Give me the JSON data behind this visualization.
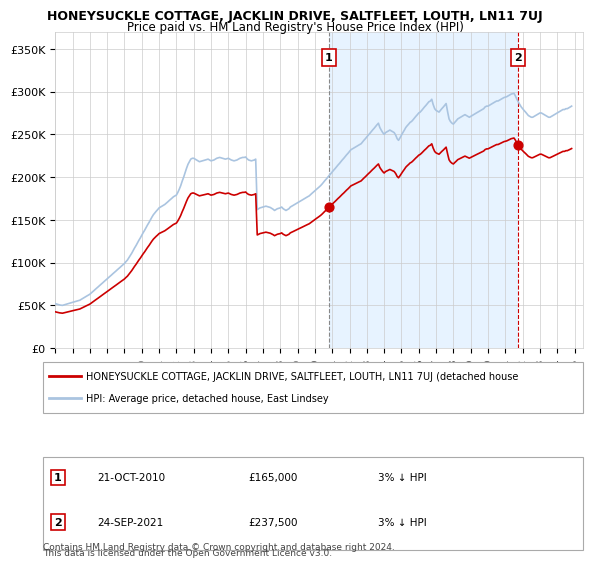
{
  "title": "HONEYSUCKLE COTTAGE, JACKLIN DRIVE, SALTFLEET, LOUTH, LN11 7UJ",
  "subtitle": "Price paid vs. HM Land Registry's House Price Index (HPI)",
  "ylabel": "",
  "background_color": "#ffffff",
  "plot_bg_color": "#ffffff",
  "grid_color": "#cccccc",
  "hpi_color": "#aac4e0",
  "price_color": "#cc0000",
  "sale1_date_num": 2010.81,
  "sale1_price": 165000,
  "sale2_date_num": 2021.73,
  "sale2_price": 237500,
  "shade_start": 2010.81,
  "shade_end": 2021.73,
  "legend_text1": "HONEYSUCKLE COTTAGE, JACKLIN DRIVE, SALTFLEET, LOUTH, LN11 7UJ (detached house",
  "legend_text2": "HPI: Average price, detached house, East Lindsey",
  "annot1_label": "1",
  "annot1_date": "21-OCT-2010",
  "annot1_price_str": "£165,000",
  "annot1_hpi": "3% ↓ HPI",
  "annot2_label": "2",
  "annot2_date": "24-SEP-2021",
  "annot2_price_str": "£237,500",
  "annot2_hpi": "3% ↓ HPI",
  "footer1": "Contains HM Land Registry data © Crown copyright and database right 2024.",
  "footer2": "This data is licensed under the Open Government Licence v3.0.",
  "ylim": [
    0,
    370000
  ],
  "xlim_start": 1995.0,
  "xlim_end": 2025.5,
  "yticks": [
    0,
    50000,
    100000,
    150000,
    200000,
    250000,
    300000,
    350000
  ],
  "ytick_labels": [
    "£0",
    "£50K",
    "£100K",
    "£150K",
    "£200K",
    "£250K",
    "£300K",
    "£350K"
  ],
  "xticks": [
    1995,
    1996,
    1997,
    1998,
    1999,
    2000,
    2001,
    2002,
    2003,
    2004,
    2005,
    2006,
    2007,
    2008,
    2009,
    2010,
    2011,
    2012,
    2013,
    2014,
    2015,
    2016,
    2017,
    2018,
    2019,
    2020,
    2021,
    2022,
    2023,
    2024,
    2025
  ],
  "hpi_times": [
    1995.0,
    1995.08,
    1995.17,
    1995.25,
    1995.33,
    1995.42,
    1995.5,
    1995.58,
    1995.67,
    1995.75,
    1995.83,
    1995.92,
    1996.0,
    1996.08,
    1996.17,
    1996.25,
    1996.33,
    1996.42,
    1996.5,
    1996.58,
    1996.67,
    1996.75,
    1996.83,
    1996.92,
    1997.0,
    1997.08,
    1997.17,
    1997.25,
    1997.33,
    1997.42,
    1997.5,
    1997.58,
    1997.67,
    1997.75,
    1997.83,
    1997.92,
    1998.0,
    1998.08,
    1998.17,
    1998.25,
    1998.33,
    1998.42,
    1998.5,
    1998.58,
    1998.67,
    1998.75,
    1998.83,
    1998.92,
    1999.0,
    1999.08,
    1999.17,
    1999.25,
    1999.33,
    1999.42,
    1999.5,
    1999.58,
    1999.67,
    1999.75,
    1999.83,
    1999.92,
    2000.0,
    2000.08,
    2000.17,
    2000.25,
    2000.33,
    2000.42,
    2000.5,
    2000.58,
    2000.67,
    2000.75,
    2000.83,
    2000.92,
    2001.0,
    2001.08,
    2001.17,
    2001.25,
    2001.33,
    2001.42,
    2001.5,
    2001.58,
    2001.67,
    2001.75,
    2001.83,
    2001.92,
    2002.0,
    2002.08,
    2002.17,
    2002.25,
    2002.33,
    2002.42,
    2002.5,
    2002.58,
    2002.67,
    2002.75,
    2002.83,
    2002.92,
    2003.0,
    2003.08,
    2003.17,
    2003.25,
    2003.33,
    2003.42,
    2003.5,
    2003.58,
    2003.67,
    2003.75,
    2003.83,
    2003.92,
    2004.0,
    2004.08,
    2004.17,
    2004.25,
    2004.33,
    2004.42,
    2004.5,
    2004.58,
    2004.67,
    2004.75,
    2004.83,
    2004.92,
    2005.0,
    2005.08,
    2005.17,
    2005.25,
    2005.33,
    2005.42,
    2005.5,
    2005.58,
    2005.67,
    2005.75,
    2005.83,
    2005.92,
    2006.0,
    2006.08,
    2006.17,
    2006.25,
    2006.33,
    2006.42,
    2006.5,
    2006.58,
    2006.67,
    2006.75,
    2006.83,
    2006.92,
    2007.0,
    2007.08,
    2007.17,
    2007.25,
    2007.33,
    2007.42,
    2007.5,
    2007.58,
    2007.67,
    2007.75,
    2007.83,
    2007.92,
    2008.0,
    2008.08,
    2008.17,
    2008.25,
    2008.33,
    2008.42,
    2008.5,
    2008.58,
    2008.67,
    2008.75,
    2008.83,
    2008.92,
    2009.0,
    2009.08,
    2009.17,
    2009.25,
    2009.33,
    2009.42,
    2009.5,
    2009.58,
    2009.67,
    2009.75,
    2009.83,
    2009.92,
    2010.0,
    2010.08,
    2010.17,
    2010.25,
    2010.33,
    2010.42,
    2010.5,
    2010.58,
    2010.67,
    2010.75,
    2010.83,
    2010.92,
    2011.0,
    2011.08,
    2011.17,
    2011.25,
    2011.33,
    2011.42,
    2011.5,
    2011.58,
    2011.67,
    2011.75,
    2011.83,
    2011.92,
    2012.0,
    2012.08,
    2012.17,
    2012.25,
    2012.33,
    2012.42,
    2012.5,
    2012.58,
    2012.67,
    2012.75,
    2012.83,
    2012.92,
    2013.0,
    2013.08,
    2013.17,
    2013.25,
    2013.33,
    2013.42,
    2013.5,
    2013.58,
    2013.67,
    2013.75,
    2013.83,
    2013.92,
    2014.0,
    2014.08,
    2014.17,
    2014.25,
    2014.33,
    2014.42,
    2014.5,
    2014.58,
    2014.67,
    2014.75,
    2014.83,
    2014.92,
    2015.0,
    2015.08,
    2015.17,
    2015.25,
    2015.33,
    2015.42,
    2015.5,
    2015.58,
    2015.67,
    2015.75,
    2015.83,
    2015.92,
    2016.0,
    2016.08,
    2016.17,
    2016.25,
    2016.33,
    2016.42,
    2016.5,
    2016.58,
    2016.67,
    2016.75,
    2016.83,
    2016.92,
    2017.0,
    2017.08,
    2017.17,
    2017.25,
    2017.33,
    2017.42,
    2017.5,
    2017.58,
    2017.67,
    2017.75,
    2017.83,
    2017.92,
    2018.0,
    2018.08,
    2018.17,
    2018.25,
    2018.33,
    2018.42,
    2018.5,
    2018.58,
    2018.67,
    2018.75,
    2018.83,
    2018.92,
    2019.0,
    2019.08,
    2019.17,
    2019.25,
    2019.33,
    2019.42,
    2019.5,
    2019.58,
    2019.67,
    2019.75,
    2019.83,
    2019.92,
    2020.0,
    2020.08,
    2020.17,
    2020.25,
    2020.33,
    2020.42,
    2020.5,
    2020.58,
    2020.67,
    2020.75,
    2020.83,
    2020.92,
    2021.0,
    2021.08,
    2021.17,
    2021.25,
    2021.33,
    2021.42,
    2021.5,
    2021.58,
    2021.67,
    2021.75,
    2021.83,
    2021.92,
    2022.0,
    2022.08,
    2022.17,
    2022.25,
    2022.33,
    2022.42,
    2022.5,
    2022.58,
    2022.67,
    2022.75,
    2022.83,
    2022.92,
    2023.0,
    2023.08,
    2023.17,
    2023.25,
    2023.33,
    2023.42,
    2023.5,
    2023.58,
    2023.67,
    2023.75,
    2023.83,
    2023.92,
    2024.0,
    2024.08,
    2024.17,
    2024.25,
    2024.33,
    2024.42,
    2024.5,
    2024.58,
    2024.67,
    2024.75,
    2024.83,
    2024.92,
    2025.0,
    2025.08,
    2025.17
  ],
  "hpi_values": [
    52000,
    51500,
    51000,
    50500,
    50200,
    50000,
    50500,
    51000,
    51500,
    52000,
    52500,
    53000,
    53500,
    54000,
    54500,
    55000,
    55500,
    56000,
    57000,
    58000,
    59000,
    60000,
    61000,
    62000,
    63000,
    64500,
    66000,
    67500,
    69000,
    70500,
    72000,
    73500,
    75000,
    76500,
    78000,
    79500,
    81000,
    82500,
    84000,
    85500,
    87000,
    88500,
    90000,
    91500,
    93000,
    94500,
    96000,
    97500,
    99000,
    101000,
    103000,
    105500,
    108000,
    111000,
    114000,
    117000,
    120000,
    123000,
    126000,
    129000,
    132000,
    135000,
    138000,
    141000,
    144000,
    147000,
    150000,
    153000,
    156000,
    158000,
    160000,
    162000,
    164000,
    165000,
    166000,
    167000,
    168000,
    169500,
    171000,
    172500,
    174000,
    175500,
    177000,
    178000,
    179000,
    182000,
    186000,
    190000,
    195000,
    200000,
    205000,
    210000,
    215000,
    218000,
    221000,
    222000,
    222000,
    221000,
    220000,
    219000,
    218000,
    218500,
    219000,
    219500,
    220000,
    220500,
    221000,
    220000,
    219000,
    219500,
    220000,
    221000,
    222000,
    222500,
    223000,
    222500,
    222000,
    221500,
    221000,
    221500,
    222000,
    221000,
    220000,
    219500,
    219000,
    219500,
    220000,
    221000,
    222000,
    222500,
    223000,
    223000,
    223500,
    221500,
    220000,
    219500,
    219000,
    219500,
    220000,
    221000,
    162000,
    163000,
    164000,
    164500,
    165000,
    165500,
    166000,
    165500,
    165000,
    164500,
    163500,
    162500,
    161000,
    162000,
    163000,
    163500,
    164000,
    165000,
    163000,
    162000,
    161000,
    162000,
    163000,
    165000,
    166000,
    167000,
    168000,
    169000,
    170000,
    171000,
    172000,
    173000,
    174000,
    175000,
    176000,
    177000,
    178000,
    179500,
    181000,
    182500,
    184000,
    185500,
    187000,
    188500,
    190000,
    192000,
    194000,
    196000,
    198000,
    200000,
    202000,
    204000,
    206000,
    208000,
    210000,
    212000,
    214000,
    216000,
    218000,
    220000,
    222000,
    224000,
    226000,
    228000,
    230000,
    232000,
    233000,
    234000,
    235000,
    236000,
    237000,
    238000,
    239000,
    241000,
    243000,
    245000,
    247000,
    249000,
    251000,
    253000,
    255000,
    257000,
    259000,
    261000,
    263000,
    258000,
    255000,
    252000,
    250000,
    252000,
    253000,
    254000,
    255000,
    254000,
    253000,
    252000,
    249000,
    245000,
    243000,
    246000,
    249000,
    252000,
    255000,
    258000,
    260000,
    262000,
    264000,
    265000,
    267000,
    269000,
    271000,
    273000,
    275000,
    276000,
    278000,
    280000,
    282000,
    284000,
    286000,
    288000,
    289000,
    291000,
    285000,
    280000,
    278000,
    277000,
    276000,
    278000,
    280000,
    282000,
    284000,
    286000,
    276000,
    268000,
    265000,
    263000,
    262000,
    264000,
    266000,
    268000,
    269000,
    270000,
    271000,
    272000,
    273000,
    272000,
    271000,
    270000,
    271000,
    272000,
    273000,
    274000,
    275000,
    276000,
    277000,
    278000,
    279000,
    280000,
    282000,
    283000,
    283000,
    284000,
    285000,
    286000,
    287000,
    288000,
    289000,
    289000,
    290000,
    291000,
    292000,
    293000,
    293500,
    294000,
    295000,
    296000,
    297000,
    297500,
    298000,
    295000,
    291000,
    288000,
    285000,
    282000,
    280000,
    278000,
    276000,
    274000,
    272000,
    271000,
    270000,
    270000,
    271000,
    272000,
    273000,
    274000,
    275000,
    275000,
    274000,
    273000,
    272000,
    271000,
    270000,
    270000,
    271000,
    272000,
    273000,
    274000,
    275000,
    276000,
    277000,
    278000,
    279000,
    279000,
    280000,
    280000,
    281000,
    282000,
    283000
  ]
}
